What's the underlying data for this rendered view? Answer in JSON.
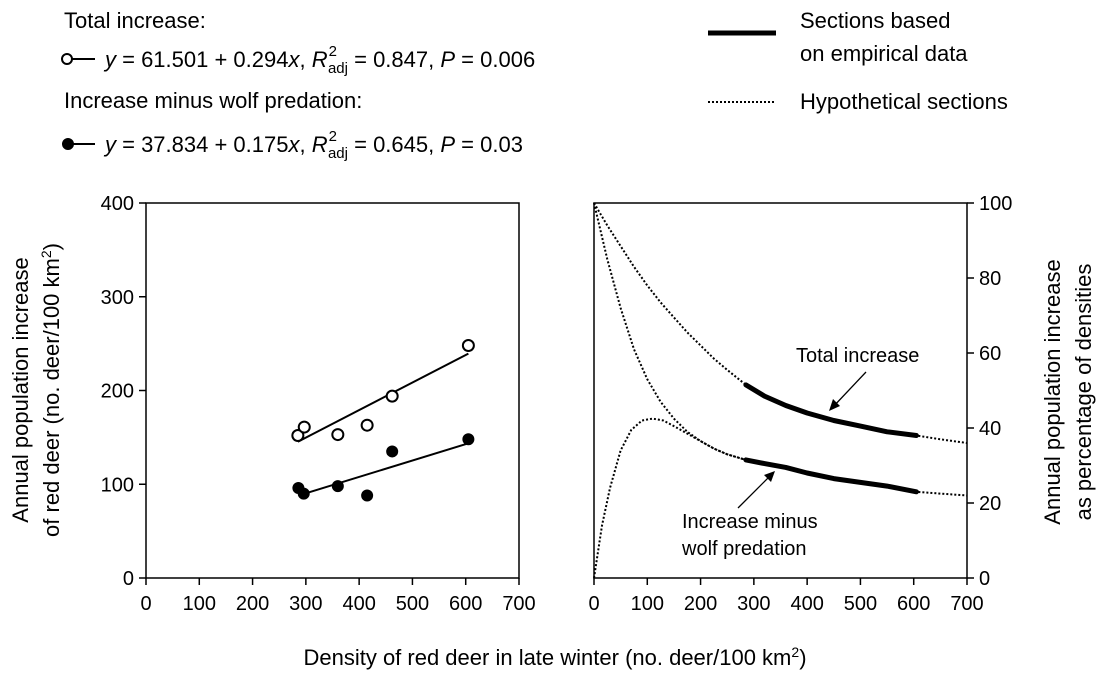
{
  "legend": {
    "total_heading": "Total increase:",
    "total_eq_pre": "y",
    "total_eq_mid": " = 61.501 + 0.294",
    "total_eq_x": "x",
    "total_eq_comma": ", ",
    "total_eq_R": "R",
    "total_eq_sup": "2",
    "total_eq_sub": "adj",
    "total_eq_r2": " = 0.847, ",
    "total_eq_P": "P",
    "total_eq_p": " = 0.006",
    "minus_heading": "Increase minus wolf predation:",
    "minus_eq_pre": "y",
    "minus_eq_mid": " = 37.834 + 0.175",
    "minus_eq_x": "x",
    "minus_eq_comma": ", ",
    "minus_eq_R": "R",
    "minus_eq_sup": "2",
    "minus_eq_sub": "adj",
    "minus_eq_r2": " = 0.645, ",
    "minus_eq_P": "P",
    "minus_eq_p": " = 0.03",
    "solid_line_1": "Sections based",
    "solid_line_2": "on empirical data",
    "dotted_line": "Hypothetical sections"
  },
  "axes": {
    "left_ylabel_1": "Annual population increase",
    "left_ylabel_2_pre": "of red deer (no. deer/100 km",
    "left_ylabel_2_sup": "2",
    "left_ylabel_2_post": ")",
    "right_ylabel_1": "Annual population increase",
    "right_ylabel_2": "as percentage of densities",
    "xlabel_pre": "Density of red deer in late winter (no. deer/100 km",
    "xlabel_sup": "2",
    "xlabel_post": ")"
  },
  "annotations": {
    "total": "Total increase",
    "minus_1": "Increase minus",
    "minus_2": "wolf predation"
  },
  "chart_data": [
    {
      "type": "scatter",
      "xlim": [
        0,
        700
      ],
      "ylim": [
        0,
        400
      ],
      "xticks": [
        0,
        100,
        200,
        300,
        400,
        500,
        600,
        700
      ],
      "yticks": [
        0,
        100,
        200,
        300,
        400
      ],
      "series": [
        {
          "name": "Total increase",
          "marker": "open-circle",
          "points": [
            [
              285,
              152
            ],
            [
              297,
              161
            ],
            [
              360,
              153
            ],
            [
              415,
              163
            ],
            [
              462,
              194
            ],
            [
              605,
              248
            ]
          ],
          "fit": {
            "intercept": 61.501,
            "slope": 0.294,
            "x_range": [
              285,
              605
            ]
          }
        },
        {
          "name": "Increase minus wolf predation",
          "marker": "filled-circle",
          "points": [
            [
              286,
              96
            ],
            [
              296,
              90
            ],
            [
              360,
              98
            ],
            [
              415,
              88
            ],
            [
              462,
              135
            ],
            [
              605,
              148
            ]
          ],
          "fit": {
            "intercept": 37.834,
            "slope": 0.175,
            "x_range": [
              296,
              605
            ]
          }
        }
      ]
    },
    {
      "type": "line",
      "xlim": [
        0,
        700
      ],
      "ylim": [
        0,
        100
      ],
      "xticks": [
        0,
        100,
        200,
        300,
        400,
        500,
        600,
        700
      ],
      "yticks": [
        0,
        20,
        40,
        60,
        80,
        100
      ],
      "empirical_x_range": [
        285,
        605
      ],
      "series": [
        {
          "name": "Total increase",
          "x": [
            0,
            25,
            50,
            75,
            100,
            125,
            150,
            175,
            200,
            225,
            250,
            285,
            320,
            360,
            400,
            450,
            500,
            550,
            605,
            650,
            700
          ],
          "y": [
            100,
            94,
            88.5,
            83,
            78,
            73.5,
            69.5,
            65.5,
            62,
            58.5,
            55.5,
            51.5,
            48.5,
            46,
            44,
            42,
            40.5,
            39,
            38,
            37,
            36
          ]
        },
        {
          "name": "Increase minus wolf predation",
          "x": [
            0,
            25,
            50,
            75,
            100,
            125,
            150,
            175,
            200,
            225,
            250,
            285,
            320,
            360,
            400,
            450,
            500,
            550,
            605,
            650,
            700
          ],
          "y": [
            100,
            85,
            72,
            61,
            53,
            47,
            42.5,
            39,
            36.5,
            34.5,
            33,
            31.5,
            30.5,
            29.5,
            28,
            26.5,
            25.5,
            24.5,
            23,
            22.5,
            22
          ]
        },
        {
          "name": "Hypothetical hump",
          "x": [
            0,
            15,
            30,
            50,
            70,
            90,
            110,
            130,
            150,
            175,
            200,
            225,
            250,
            285
          ],
          "y": [
            0,
            14,
            24,
            34,
            39.5,
            42,
            42.5,
            42,
            40.5,
            38.5,
            36.5,
            34.5,
            33,
            31.5
          ]
        }
      ]
    }
  ]
}
